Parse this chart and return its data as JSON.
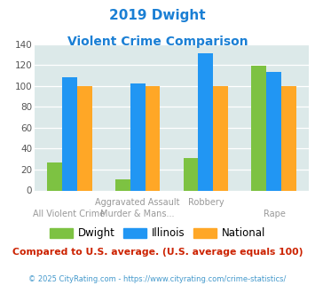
{
  "title_line1": "2019 Dwight",
  "title_line2": "Violent Crime Comparison",
  "dwight": [
    27,
    11,
    31,
    119
  ],
  "illinois": [
    108,
    102,
    131,
    113
  ],
  "national": [
    100,
    100,
    100,
    100
  ],
  "dwight_color": "#7dc242",
  "illinois_color": "#2196f3",
  "national_color": "#ffa726",
  "ylim": [
    0,
    140
  ],
  "yticks": [
    0,
    20,
    40,
    60,
    80,
    100,
    120,
    140
  ],
  "plot_bg": "#dce9e9",
  "title_color": "#1a7fd4",
  "footer_text": "Compared to U.S. average. (U.S. average equals 100)",
  "footer_color": "#cc2200",
  "credit_text": "© 2025 CityRating.com - https://www.cityrating.com/crime-statistics/",
  "credit_color": "#4499cc",
  "bar_width": 0.22
}
